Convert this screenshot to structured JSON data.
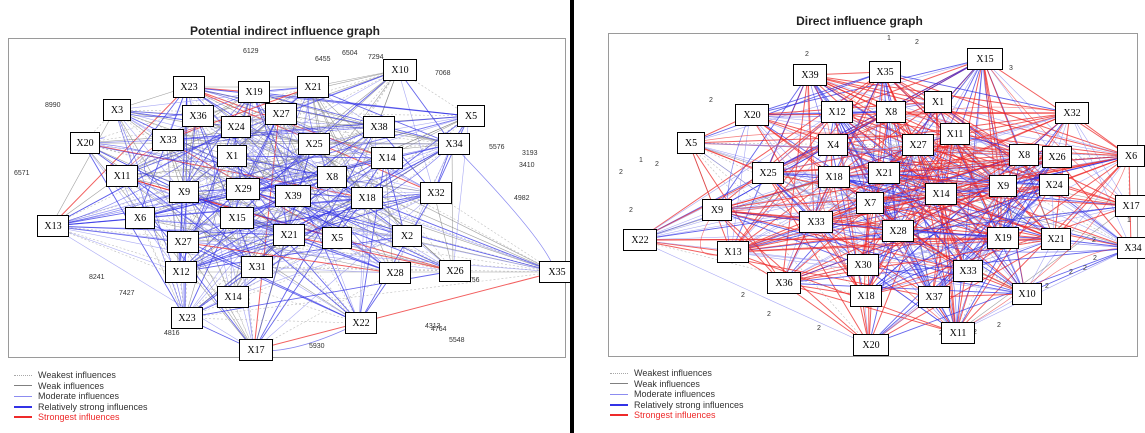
{
  "legend_colors": {
    "weakest": "#a8a8a8",
    "weak": "#808080",
    "moderate": "#8c8cf0",
    "relatively_strong": "#3232e6",
    "strongest": "#ee2a2a"
  },
  "left": {
    "title": "Potential indirect influence graph",
    "nodes": [
      "X10",
      "X23",
      "X19",
      "X21",
      "X3",
      "X36",
      "X27",
      "X5",
      "X20",
      "X33",
      "X24",
      "X25",
      "X38",
      "X34",
      "X11",
      "X1",
      "X14",
      "X9",
      "X29",
      "X39",
      "X8",
      "X18",
      "X32",
      "X13",
      "X6",
      "X15",
      "X5",
      "X2",
      "X27",
      "X21",
      "X12",
      "X31",
      "X28",
      "X26",
      "X35",
      "X14",
      "X23",
      "X22",
      "X17"
    ],
    "edge_numbers": [
      "6129",
      "6455",
      "6504",
      "7294",
      "7068",
      "8990",
      "5576",
      "6571",
      "3193",
      "3410",
      "4982",
      "8241",
      "7427",
      "4816",
      "5930",
      "4764",
      "5548",
      "4313",
      "6756"
    ],
    "legend": [
      "Weakest influences",
      "Weak influences",
      "Moderate influences",
      "Relatively strong influences",
      "Strongest influences"
    ]
  },
  "right": {
    "title": "Direct influence graph",
    "nodes": [
      "X15",
      "X39",
      "X35",
      "X20",
      "X12",
      "X8",
      "X1",
      "X32",
      "X5",
      "X4",
      "X27",
      "X11",
      "X8",
      "X6",
      "X25",
      "X18",
      "X21",
      "X26",
      "X14",
      "X9",
      "X24",
      "X9",
      "X7",
      "X17",
      "X33",
      "X28",
      "X22",
      "X19",
      "X21",
      "X34",
      "X13",
      "X30",
      "X33",
      "X36",
      "X18",
      "X37",
      "X10",
      "X20",
      "X11"
    ],
    "edge_numbers": [
      "1",
      "2",
      "2",
      "3",
      "2",
      "2",
      "1",
      "2",
      "2",
      "2",
      "2",
      "2",
      "2",
      "1",
      "2",
      "2",
      "2",
      "2",
      "2",
      "2",
      "2",
      "2"
    ],
    "legend": [
      "Weakest influences",
      "Weak influences",
      "Moderate influences",
      "Relatively strong influences",
      "Strongest influences"
    ]
  }
}
